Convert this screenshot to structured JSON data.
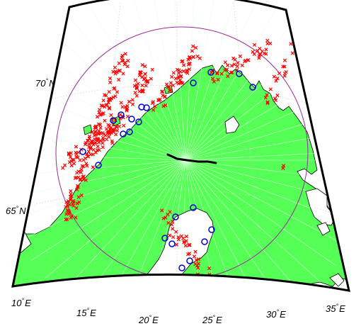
{
  "colors": {
    "land": "#55ff55",
    "land_outline": "#000000",
    "grid": "#c8c8c8",
    "ray": "#e6ffe6",
    "circle": "#9a2aa0",
    "cross": "#ff0000",
    "ring": "#0000cc",
    "track": "#000000",
    "frame": "#000000"
  },
  "labels": {
    "lat_70": "70",
    "lat_65": "65",
    "lat_suffix": "N",
    "lon_10": "10",
    "lon_15": "15",
    "lon_20": "20",
    "lon_25": "25",
    "lon_30": "30",
    "lon_35": "35",
    "lon_suffix": "E",
    "degree": "°"
  },
  "icons": {
    "cross_marker": "x-mark-icon",
    "ring_marker": "circle-marker-icon"
  }
}
